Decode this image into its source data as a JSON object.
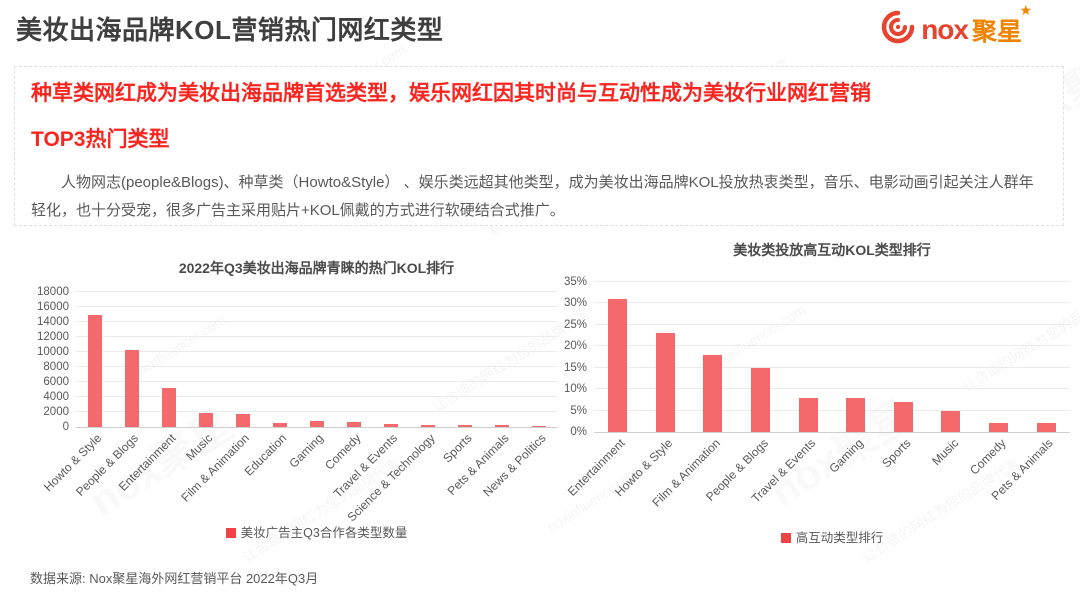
{
  "page": {
    "title": "美妆出海品牌KOL营销热门网红类型",
    "source": "数据来源: Nox聚星海外网红营销平台 2022年Q3月"
  },
  "logo": {
    "nox": "nox",
    "cn": "聚星",
    "star": "★"
  },
  "watermark": {
    "slogan": "让合适的网红为您的品牌代言",
    "domain": "noxinfluencer.com",
    "brand": "nox聚星"
  },
  "highlight_box": {
    "headline_line1": "种草类网红成为美妆出海品牌首选类型，娱乐网红因其时尚与互动性成为美妆行业网红营销",
    "headline_line2": "TOP3热门类型",
    "body": "人物网志(people&Blogs)、种草类（Howto&Style） 、娱乐类远超其他类型，成为美妆出海品牌KOL投放热衷类型，音乐、电影动画引起关注人群年轻化，也十分受宠，很多广告主采用贴片+KOL佩戴的方式进行软硬结合式推广。"
  },
  "colors": {
    "bar": "#F4696B",
    "legend_red": "#EF4444",
    "accent_red": "#FB2520",
    "logo_red": "#E8432E",
    "logo_orange": "#F08300"
  },
  "chart_data": [
    {
      "type": "bar",
      "title": "2022年Q3美妆出海品牌青睐的热门KOL排行",
      "categories": [
        "Howto & Style",
        "People & Blogs",
        "Entertainment",
        "Music",
        "Film & Animation",
        "Education",
        "Gaming",
        "Comedy",
        "Travel & Events",
        "Science & Technology",
        "Sports",
        "Pets & Animals",
        "News & Politics"
      ],
      "values": [
        15000,
        10300,
        5200,
        1900,
        1700,
        500,
        800,
        700,
        450,
        250,
        250,
        250,
        150
      ],
      "ylabel": "",
      "ylim": [
        0,
        18000
      ],
      "ytick_step": 2000,
      "ytick_format": "number",
      "grid": true,
      "legend": "美妆广告主Q3合作各类型数量",
      "legend_position": "bottom"
    },
    {
      "type": "bar",
      "title": "美妆类投放高互动KOL类型排行",
      "categories": [
        "Entertainment",
        "Howto & Style",
        "Film & Animation",
        "People & Blogs",
        "Travel & Events",
        "Gaming",
        "Sports",
        "Music",
        "Comedy",
        "Pets & Animals"
      ],
      "values": [
        31,
        23,
        18,
        15,
        8,
        8,
        7,
        5,
        2,
        2
      ],
      "ylabel": "",
      "ylim": [
        0,
        35
      ],
      "ytick_step": 5,
      "ytick_format": "percent",
      "grid": true,
      "legend": "高互动类型排行",
      "legend_position": "bottom"
    }
  ]
}
